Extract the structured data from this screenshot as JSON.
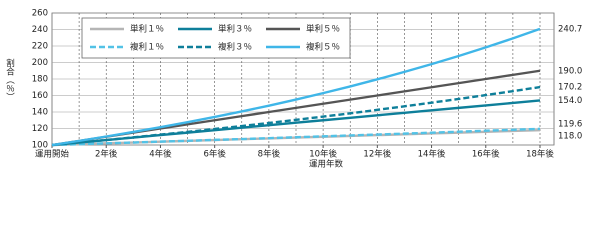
{
  "chart_data": {
    "type": "line",
    "ylabel": "割合（％）",
    "xlabel": "運用年数",
    "x": [
      0,
      1,
      2,
      3,
      4,
      5,
      6,
      7,
      8,
      9,
      10,
      11,
      12,
      13,
      14,
      15,
      16,
      17,
      18
    ],
    "xlim": [
      0,
      18
    ],
    "xticks": [
      {
        "value": 0,
        "label": "運用開始"
      },
      {
        "value": 2,
        "label": "2年後"
      },
      {
        "value": 4,
        "label": "4年後"
      },
      {
        "value": 6,
        "label": "6年後"
      },
      {
        "value": 8,
        "label": "8年後"
      },
      {
        "value": 10,
        "label": "10年後"
      },
      {
        "value": 12,
        "label": "12年後"
      },
      {
        "value": 14,
        "label": "14年後"
      },
      {
        "value": 16,
        "label": "16年後"
      },
      {
        "value": 18,
        "label": "18年後"
      }
    ],
    "ylim": [
      100,
      260
    ],
    "yticks": [
      100,
      120,
      140,
      160,
      180,
      200,
      220,
      240,
      260
    ],
    "grid": true,
    "series": [
      {
        "name": "単利１％",
        "color": "#b5b5b5",
        "dash": false,
        "values": [
          100,
          101,
          102,
          103,
          104,
          105,
          106,
          107,
          108,
          109,
          110,
          111,
          112,
          113,
          114,
          115,
          116,
          117,
          118
        ],
        "value_labels": [
          null,
          null,
          null,
          null,
          null,
          null,
          null,
          null,
          null,
          null,
          null,
          null,
          null,
          null,
          null,
          null,
          null,
          null,
          "118.0"
        ]
      },
      {
        "name": "単利３％",
        "color": "#0e7f9a",
        "dash": false,
        "values": [
          100,
          103,
          106,
          109,
          112,
          115,
          118,
          121,
          124,
          127,
          130,
          133,
          136,
          139,
          142,
          145,
          148,
          151,
          154
        ],
        "value_labels": [
          null,
          null,
          null,
          null,
          null,
          null,
          null,
          null,
          null,
          null,
          null,
          null,
          null,
          null,
          null,
          null,
          null,
          null,
          "154.0"
        ]
      },
      {
        "name": "単利５％",
        "color": "#555555",
        "dash": false,
        "values": [
          100,
          105,
          110,
          115,
          120,
          125,
          130,
          135,
          140,
          145,
          150,
          155,
          160,
          165,
          170,
          175,
          180,
          185,
          190
        ],
        "value_labels": [
          null,
          null,
          null,
          null,
          null,
          null,
          null,
          null,
          null,
          null,
          null,
          null,
          null,
          null,
          null,
          null,
          null,
          null,
          "190.0"
        ]
      },
      {
        "name": "複利１％",
        "color": "#52c2e6",
        "dash": true,
        "values": [
          100,
          101,
          102,
          103,
          104.1,
          105.1,
          106.2,
          107.2,
          108.3,
          109.4,
          110.5,
          111.6,
          112.7,
          113.8,
          114.9,
          116.1,
          117.3,
          118.4,
          119.6
        ],
        "value_labels": [
          null,
          null,
          null,
          null,
          null,
          null,
          null,
          null,
          null,
          null,
          null,
          null,
          null,
          null,
          null,
          null,
          null,
          null,
          "119.6"
        ]
      },
      {
        "name": "複利３％",
        "color": "#0e7f9a",
        "dash": true,
        "values": [
          100,
          103,
          106.1,
          109.3,
          112.6,
          115.9,
          119.4,
          123,
          126.7,
          130.5,
          134.4,
          138.4,
          142.6,
          146.9,
          151.3,
          155.8,
          160.5,
          165.3,
          170.2
        ],
        "value_labels": [
          null,
          null,
          null,
          null,
          null,
          null,
          null,
          null,
          null,
          null,
          null,
          null,
          null,
          null,
          null,
          null,
          null,
          null,
          "170.2"
        ]
      },
      {
        "name": "複利５％",
        "color": "#3fb6e8",
        "dash": false,
        "values": [
          100,
          105,
          110.3,
          115.8,
          121.6,
          127.6,
          134,
          140.7,
          147.7,
          155.1,
          162.9,
          171,
          179.6,
          188.6,
          198,
          207.9,
          218.3,
          229.2,
          240.7
        ],
        "value_labels": [
          null,
          null,
          null,
          null,
          null,
          null,
          null,
          null,
          null,
          null,
          null,
          null,
          null,
          null,
          null,
          null,
          null,
          null,
          "240.7"
        ]
      }
    ]
  }
}
